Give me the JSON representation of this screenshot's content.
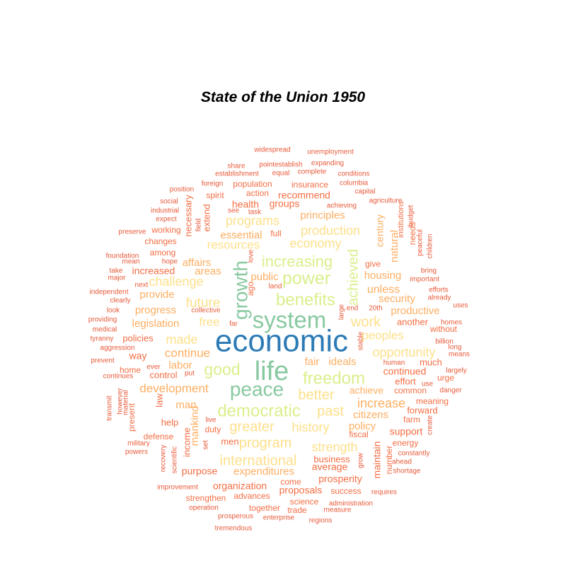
{
  "chart_data": {
    "type": "wordcloud",
    "title": "State of the Union 1950",
    "colors": {
      "t1": "#2c7bb6",
      "t2": "#88c9a0",
      "t3": "#d9ef8b",
      "t4": "#fee08b",
      "t5": "#fdae61",
      "t6": "#f46d43",
      "t7": "#e85a3a"
    },
    "words": [
      {
        "text": "economic",
        "weight": 100,
        "tier": "t1"
      },
      {
        "text": "life",
        "weight": 80,
        "tier": "t2"
      },
      {
        "text": "system",
        "weight": 70,
        "tier": "t2"
      },
      {
        "text": "peace",
        "weight": 60,
        "tier": "t2"
      },
      {
        "text": "growth",
        "weight": 58,
        "tier": "t2"
      },
      {
        "text": "freedom",
        "weight": 55,
        "tier": "t3"
      },
      {
        "text": "power",
        "weight": 55,
        "tier": "t3"
      },
      {
        "text": "benefits",
        "weight": 52,
        "tier": "t3"
      },
      {
        "text": "democratic",
        "weight": 52,
        "tier": "t3"
      },
      {
        "text": "good",
        "weight": 48,
        "tier": "t3"
      },
      {
        "text": "increasing",
        "weight": 48,
        "tier": "t3"
      },
      {
        "text": "achieved",
        "weight": 42,
        "tier": "t3"
      },
      {
        "text": "better",
        "weight": 42,
        "tier": "t4"
      },
      {
        "text": "program",
        "weight": 42,
        "tier": "t4"
      },
      {
        "text": "greater",
        "weight": 40,
        "tier": "t4"
      },
      {
        "text": "work",
        "weight": 40,
        "tier": "t4"
      },
      {
        "text": "past",
        "weight": 40,
        "tier": "t4"
      },
      {
        "text": "international",
        "weight": 40,
        "tier": "t4"
      },
      {
        "text": "future",
        "weight": 38,
        "tier": "t4"
      },
      {
        "text": "history",
        "weight": 38,
        "tier": "t4"
      },
      {
        "text": "strength",
        "weight": 36,
        "tier": "t4"
      },
      {
        "text": "economy",
        "weight": 36,
        "tier": "t4"
      },
      {
        "text": "production",
        "weight": 36,
        "tier": "t4"
      },
      {
        "text": "programs",
        "weight": 34,
        "tier": "t4"
      },
      {
        "text": "opportunity",
        "weight": 34,
        "tier": "t4"
      },
      {
        "text": "challenge",
        "weight": 34,
        "tier": "t4"
      },
      {
        "text": "made",
        "weight": 34,
        "tier": "t4"
      },
      {
        "text": "increase",
        "weight": 34,
        "tier": "t5"
      },
      {
        "text": "continue",
        "weight": 32,
        "tier": "t5"
      },
      {
        "text": "development",
        "weight": 32,
        "tier": "t5"
      },
      {
        "text": "free",
        "weight": 32,
        "tier": "t4"
      },
      {
        "text": "peoples",
        "weight": 32,
        "tier": "t4"
      },
      {
        "text": "resources",
        "weight": 30,
        "tier": "t4"
      },
      {
        "text": "expenditures",
        "weight": 30,
        "tier": "t5"
      },
      {
        "text": "citizens",
        "weight": 30,
        "tier": "t5"
      },
      {
        "text": "policy",
        "weight": 30,
        "tier": "t5"
      },
      {
        "text": "unless",
        "weight": 30,
        "tier": "t5"
      },
      {
        "text": "security",
        "weight": 30,
        "tier": "t5"
      },
      {
        "text": "housing",
        "weight": 28,
        "tier": "t5"
      },
      {
        "text": "public",
        "weight": 28,
        "tier": "t5"
      },
      {
        "text": "labor",
        "weight": 28,
        "tier": "t5"
      },
      {
        "text": "ideals",
        "weight": 28,
        "tier": "t5"
      },
      {
        "text": "fair",
        "weight": 26,
        "tier": "t5"
      },
      {
        "text": "productive",
        "weight": 26,
        "tier": "t5"
      },
      {
        "text": "continued",
        "weight": 26,
        "tier": "t6"
      },
      {
        "text": "achieve",
        "weight": 26,
        "tier": "t5"
      },
      {
        "text": "essential",
        "weight": 26,
        "tier": "t5"
      },
      {
        "text": "principles",
        "weight": 26,
        "tier": "t5"
      },
      {
        "text": "natural",
        "weight": 26,
        "tier": "t5"
      },
      {
        "text": "century",
        "weight": 24,
        "tier": "t5"
      },
      {
        "text": "affairs",
        "weight": 24,
        "tier": "t5"
      },
      {
        "text": "areas",
        "weight": 24,
        "tier": "t5"
      },
      {
        "text": "legislation",
        "weight": 24,
        "tier": "t5"
      },
      {
        "text": "progress",
        "weight": 24,
        "tier": "t5"
      },
      {
        "text": "provide",
        "weight": 24,
        "tier": "t5"
      },
      {
        "text": "man",
        "weight": 24,
        "tier": "t5"
      },
      {
        "text": "mankind",
        "weight": 24,
        "tier": "t5"
      },
      {
        "text": "organization",
        "weight": 24,
        "tier": "t6"
      },
      {
        "text": "purpose",
        "weight": 24,
        "tier": "t6"
      },
      {
        "text": "proposals",
        "weight": 24,
        "tier": "t6"
      },
      {
        "text": "average",
        "weight": 24,
        "tier": "t6"
      },
      {
        "text": "maintain",
        "weight": 24,
        "tier": "t6"
      },
      {
        "text": "prosperity",
        "weight": 22,
        "tier": "t6"
      },
      {
        "text": "support",
        "weight": 22,
        "tier": "t6"
      },
      {
        "text": "another",
        "weight": 22,
        "tier": "t6"
      },
      {
        "text": "way",
        "weight": 22,
        "tier": "t6"
      },
      {
        "text": "policies",
        "weight": 22,
        "tier": "t6"
      },
      {
        "text": "increased",
        "weight": 22,
        "tier": "t6"
      },
      {
        "text": "health",
        "weight": 22,
        "tier": "t6"
      },
      {
        "text": "groups",
        "weight": 22,
        "tier": "t6"
      },
      {
        "text": "recommend",
        "weight": 22,
        "tier": "t6"
      },
      {
        "text": "control",
        "weight": 20,
        "tier": "t6"
      },
      {
        "text": "help",
        "weight": 20,
        "tier": "t6"
      },
      {
        "text": "men",
        "weight": 20,
        "tier": "t6"
      },
      {
        "text": "law",
        "weight": 20,
        "tier": "t6"
      },
      {
        "text": "income",
        "weight": 20,
        "tier": "t6"
      },
      {
        "text": "necessary",
        "weight": 20,
        "tier": "t6"
      },
      {
        "text": "extend",
        "weight": 20,
        "tier": "t6"
      },
      {
        "text": "effort",
        "weight": 20,
        "tier": "t6"
      },
      {
        "text": "much",
        "weight": 20,
        "tier": "t6"
      },
      {
        "text": "forward",
        "weight": 20,
        "tier": "t6"
      },
      {
        "text": "business",
        "weight": 20,
        "tier": "t6"
      },
      {
        "text": "ago",
        "weight": 20,
        "tier": "t6"
      },
      {
        "text": "working",
        "weight": 18,
        "tier": "t6"
      },
      {
        "text": "changes",
        "weight": 18,
        "tier": "t6"
      },
      {
        "text": "among",
        "weight": 18,
        "tier": "t6"
      },
      {
        "text": "home",
        "weight": 18,
        "tier": "t6"
      },
      {
        "text": "defense",
        "weight": 18,
        "tier": "t6"
      },
      {
        "text": "present",
        "weight": 18,
        "tier": "t6"
      },
      {
        "text": "duty",
        "weight": 18,
        "tier": "t6"
      },
      {
        "text": "come",
        "weight": 18,
        "tier": "t6"
      },
      {
        "text": "together",
        "weight": 18,
        "tier": "t6"
      },
      {
        "text": "strengthen",
        "weight": 18,
        "tier": "t6"
      },
      {
        "text": "advances",
        "weight": 18,
        "tier": "t6"
      },
      {
        "text": "science",
        "weight": 18,
        "tier": "t6"
      },
      {
        "text": "trade",
        "weight": 18,
        "tier": "t6"
      },
      {
        "text": "success",
        "weight": 18,
        "tier": "t6"
      },
      {
        "text": "energy",
        "weight": 18,
        "tier": "t6"
      },
      {
        "text": "farm",
        "weight": 18,
        "tier": "t6"
      },
      {
        "text": "meaning",
        "weight": 18,
        "tier": "t6"
      },
      {
        "text": "common",
        "weight": 18,
        "tier": "t6"
      },
      {
        "text": "fiscal",
        "weight": 18,
        "tier": "t6"
      },
      {
        "text": "number",
        "weight": 18,
        "tier": "t6"
      },
      {
        "text": "without",
        "weight": 18,
        "tier": "t6"
      },
      {
        "text": "give",
        "weight": 18,
        "tier": "t6"
      },
      {
        "text": "spirit",
        "weight": 18,
        "tier": "t6"
      },
      {
        "text": "population",
        "weight": 18,
        "tier": "t6"
      },
      {
        "text": "insurance",
        "weight": 18,
        "tier": "t6"
      },
      {
        "text": "action",
        "weight": 18,
        "tier": "t6"
      },
      {
        "text": "full",
        "weight": 18,
        "tier": "t6"
      },
      {
        "text": "urge",
        "weight": 18,
        "tier": "t6"
      },
      {
        "text": "institutions",
        "weight": 16,
        "tier": "t6"
      },
      {
        "text": "needs",
        "weight": 16,
        "tier": "t6"
      },
      {
        "text": "widespread",
        "weight": 14,
        "tier": "t7"
      },
      {
        "text": "unemployment",
        "weight": 14,
        "tier": "t7"
      },
      {
        "text": "share",
        "weight": 14,
        "tier": "t7"
      },
      {
        "text": "pointestablish",
        "weight": 14,
        "tier": "t7"
      },
      {
        "text": "expanding",
        "weight": 14,
        "tier": "t7"
      },
      {
        "text": "establishment",
        "weight": 14,
        "tier": "t7"
      },
      {
        "text": "equal",
        "weight": 14,
        "tier": "t7"
      },
      {
        "text": "complete",
        "weight": 14,
        "tier": "t7"
      },
      {
        "text": "conditions",
        "weight": 14,
        "tier": "t7"
      },
      {
        "text": "foreign",
        "weight": 14,
        "tier": "t7"
      },
      {
        "text": "columbia",
        "weight": 14,
        "tier": "t7"
      },
      {
        "text": "position",
        "weight": 14,
        "tier": "t7"
      },
      {
        "text": "capital",
        "weight": 14,
        "tier": "t7"
      },
      {
        "text": "social",
        "weight": 14,
        "tier": "t7"
      },
      {
        "text": "achieving",
        "weight": 14,
        "tier": "t7"
      },
      {
        "text": "agriculture",
        "weight": 14,
        "tier": "t7"
      },
      {
        "text": "industrial",
        "weight": 14,
        "tier": "t7"
      },
      {
        "text": "see",
        "weight": 14,
        "tier": "t7"
      },
      {
        "text": "task",
        "weight": 14,
        "tier": "t7"
      },
      {
        "text": "expect",
        "weight": 14,
        "tier": "t7"
      },
      {
        "text": "field",
        "weight": 14,
        "tier": "t7"
      },
      {
        "text": "budget",
        "weight": 14,
        "tier": "t7"
      },
      {
        "text": "preserve",
        "weight": 14,
        "tier": "t7"
      },
      {
        "text": "peaceful",
        "weight": 14,
        "tier": "t7"
      },
      {
        "text": "children",
        "weight": 14,
        "tier": "t7"
      },
      {
        "text": "foundation",
        "weight": 14,
        "tier": "t7"
      },
      {
        "text": "mean",
        "weight": 14,
        "tier": "t7"
      },
      {
        "text": "hope",
        "weight": 14,
        "tier": "t7"
      },
      {
        "text": "love",
        "weight": 14,
        "tier": "t7"
      },
      {
        "text": "bring",
        "weight": 14,
        "tier": "t7"
      },
      {
        "text": "take",
        "weight": 14,
        "tier": "t7"
      },
      {
        "text": "major",
        "weight": 14,
        "tier": "t7"
      },
      {
        "text": "important",
        "weight": 14,
        "tier": "t7"
      },
      {
        "text": "next",
        "weight": 14,
        "tier": "t7"
      },
      {
        "text": "land",
        "weight": 14,
        "tier": "t7"
      },
      {
        "text": "efforts",
        "weight": 14,
        "tier": "t7"
      },
      {
        "text": "independent",
        "weight": 14,
        "tier": "t7"
      },
      {
        "text": "already",
        "weight": 14,
        "tier": "t7"
      },
      {
        "text": "clearly",
        "weight": 14,
        "tier": "t7"
      },
      {
        "text": "uses",
        "weight": 14,
        "tier": "t7"
      },
      {
        "text": "look",
        "weight": 14,
        "tier": "t7"
      },
      {
        "text": "collective",
        "weight": 14,
        "tier": "t7"
      },
      {
        "text": "large",
        "weight": 14,
        "tier": "t7"
      },
      {
        "text": "end",
        "weight": 14,
        "tier": "t7"
      },
      {
        "text": "20th",
        "weight": 14,
        "tier": "t7"
      },
      {
        "text": "providing",
        "weight": 14,
        "tier": "t7"
      },
      {
        "text": "far",
        "weight": 14,
        "tier": "t7"
      },
      {
        "text": "homes",
        "weight": 14,
        "tier": "t7"
      },
      {
        "text": "medical",
        "weight": 14,
        "tier": "t7"
      },
      {
        "text": "long",
        "weight": 14,
        "tier": "t7"
      },
      {
        "text": "tyranny",
        "weight": 14,
        "tier": "t7"
      },
      {
        "text": "billion",
        "weight": 14,
        "tier": "t7"
      },
      {
        "text": "aggression",
        "weight": 14,
        "tier": "t7"
      },
      {
        "text": "stable",
        "weight": 14,
        "tier": "t7"
      },
      {
        "text": "means",
        "weight": 14,
        "tier": "t7"
      },
      {
        "text": "prevent",
        "weight": 14,
        "tier": "t7"
      },
      {
        "text": "ever",
        "weight": 14,
        "tier": "t7"
      },
      {
        "text": "human",
        "weight": 14,
        "tier": "t7"
      },
      {
        "text": "largely",
        "weight": 14,
        "tier": "t7"
      },
      {
        "text": "continues",
        "weight": 14,
        "tier": "t7"
      },
      {
        "text": "put",
        "weight": 14,
        "tier": "t7"
      },
      {
        "text": "use",
        "weight": 14,
        "tier": "t7"
      },
      {
        "text": "danger",
        "weight": 14,
        "tier": "t7"
      },
      {
        "text": "transmit",
        "weight": 14,
        "tier": "t7"
      },
      {
        "text": "however",
        "weight": 14,
        "tier": "t7"
      },
      {
        "text": "material",
        "weight": 14,
        "tier": "t7"
      },
      {
        "text": "live",
        "weight": 14,
        "tier": "t7"
      },
      {
        "text": "military",
        "weight": 14,
        "tier": "t7"
      },
      {
        "text": "set",
        "weight": 14,
        "tier": "t7"
      },
      {
        "text": "create",
        "weight": 14,
        "tier": "t7"
      },
      {
        "text": "powers",
        "weight": 14,
        "tier": "t7"
      },
      {
        "text": "constantly",
        "weight": 14,
        "tier": "t7"
      },
      {
        "text": "recovery",
        "weight": 14,
        "tier": "t7"
      },
      {
        "text": "scientific",
        "weight": 14,
        "tier": "t7"
      },
      {
        "text": "grow",
        "weight": 14,
        "tier": "t7"
      },
      {
        "text": "ahead",
        "weight": 14,
        "tier": "t7"
      },
      {
        "text": "shortage",
        "weight": 14,
        "tier": "t7"
      },
      {
        "text": "improvement",
        "weight": 14,
        "tier": "t7"
      },
      {
        "text": "requires",
        "weight": 14,
        "tier": "t7"
      },
      {
        "text": "operation",
        "weight": 14,
        "tier": "t7"
      },
      {
        "text": "administration",
        "weight": 14,
        "tier": "t7"
      },
      {
        "text": "measure",
        "weight": 14,
        "tier": "t7"
      },
      {
        "text": "prosperous",
        "weight": 14,
        "tier": "t7"
      },
      {
        "text": "enterprise",
        "weight": 14,
        "tier": "t7"
      },
      {
        "text": "regions",
        "weight": 14,
        "tier": "t7"
      },
      {
        "text": "tremendous",
        "weight": 14,
        "tier": "t7"
      }
    ]
  }
}
